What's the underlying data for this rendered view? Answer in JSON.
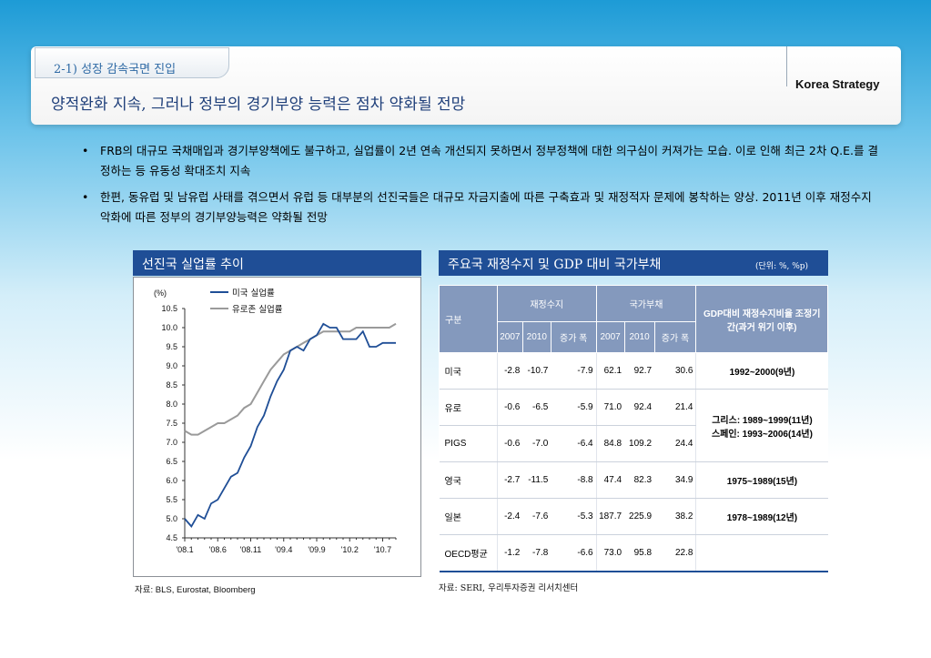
{
  "header": {
    "section_tab": "2-1) 성장 감속국면 진입",
    "title": "양적완화 지속, 그러나 정부의 경기부양 능력은 점차 약화될 전망",
    "brand": "Korea Strategy"
  },
  "bullets": [
    "FRB의 대규모 국채매입과 경기부양책에도 불구하고, 실업률이 2년 연속 개선되지 못하면서 정부정책에 대한 의구심이 커져가는 모습. 이로 인해 최근 2차 Q.E.를 결정하는 등 유동성 확대조치 지속",
    "한편, 동유럽 및 남유럽 사태를 겪으면서 유럽 등 대부분의 선진국들은 대규모 자금지출에 따른 구축효과 및 재정적자 문제에 봉착하는 양상. 2011년 이후 재정수지 악화에 따른 정부의 경기부양능력은 약화될 전망"
  ],
  "left_panel": {
    "title": "선진국 실업률 추이",
    "source": "자료: BLS, Eurostat, Bloomberg"
  },
  "right_panel": {
    "title": "주요국 재정수지 및 GDP 대비 국가부채",
    "unit": "(단위: %, %p)",
    "source": "자료: SERI, 우리투자증권 리서치센터"
  },
  "chart_data": [
    {
      "type": "line",
      "ylabel": "(%)",
      "ylim": [
        4.5,
        10.5
      ],
      "yticks": [
        "4.5",
        "5.0",
        "5.5",
        "6.0",
        "6.5",
        "7.0",
        "7.5",
        "8.0",
        "8.5",
        "9.0",
        "9.5",
        "10.0",
        "10.5"
      ],
      "xticks": [
        "'08.1",
        "'08.6",
        "'08.11",
        "'09.4",
        "'09.9",
        "'10.2",
        "'10.7"
      ],
      "x": [
        0,
        1,
        2,
        3,
        4,
        5,
        6,
        7,
        8,
        9,
        10,
        11,
        12,
        13,
        14,
        15,
        16,
        17,
        18,
        19,
        20,
        21,
        22,
        23,
        24,
        25,
        26,
        27,
        28,
        29,
        30,
        31,
        32
      ],
      "legend_position": "top-right",
      "series": [
        {
          "name": "미국 실업률",
          "color": "#1f4e96",
          "values": [
            5.0,
            4.8,
            5.1,
            5.0,
            5.4,
            5.5,
            5.8,
            6.1,
            6.2,
            6.6,
            6.9,
            7.4,
            7.7,
            8.2,
            8.6,
            8.9,
            9.4,
            9.5,
            9.4,
            9.7,
            9.8,
            10.1,
            10.0,
            10.0,
            9.7,
            9.7,
            9.7,
            9.9,
            9.5,
            9.5,
            9.6,
            9.6,
            9.6
          ]
        },
        {
          "name": "유로존 실업률",
          "color": "#9a9a9a",
          "values": [
            7.3,
            7.2,
            7.2,
            7.3,
            7.4,
            7.5,
            7.5,
            7.6,
            7.7,
            7.9,
            8.0,
            8.3,
            8.6,
            8.9,
            9.1,
            9.3,
            9.4,
            9.5,
            9.6,
            9.7,
            9.8,
            9.9,
            9.9,
            9.9,
            9.9,
            9.9,
            10.0,
            10.0,
            10.0,
            10.0,
            10.0,
            10.0,
            10.1
          ]
        }
      ]
    },
    {
      "type": "table",
      "headers": {
        "category": "구분",
        "group_fiscal": "재정수지",
        "group_debt": "국가부채",
        "group_adjust": "GDP대비 재정수지비율 조정기간(과거 위기 이후)",
        "sub": [
          "2007",
          "2010",
          "증가 폭",
          "2007",
          "2010",
          "증가 폭"
        ]
      },
      "rows": [
        {
          "name": "미국",
          "fiscal_2007": "-2.8",
          "fiscal_2010": "-10.7",
          "fiscal_change": "-7.9",
          "debt_2007": "62.1",
          "debt_2010": "92.7",
          "debt_change": "30.6"
        },
        {
          "name": "유로",
          "fiscal_2007": "-0.6",
          "fiscal_2010": "-6.5",
          "fiscal_change": "-5.9",
          "debt_2007": "71.0",
          "debt_2010": "92.4",
          "debt_change": "21.4"
        },
        {
          "name": "PIGS",
          "fiscal_2007": "-0.6",
          "fiscal_2010": "-7.0",
          "fiscal_change": "-6.4",
          "debt_2007": "84.8",
          "debt_2010": "109.2",
          "debt_change": "24.4"
        },
        {
          "name": "영국",
          "fiscal_2007": "-2.7",
          "fiscal_2010": "-11.5",
          "fiscal_change": "-8.8",
          "debt_2007": "47.4",
          "debt_2010": "82.3",
          "debt_change": "34.9"
        },
        {
          "name": "일본",
          "fiscal_2007": "-2.4",
          "fiscal_2010": "-7.6",
          "fiscal_change": "-5.3",
          "debt_2007": "187.7",
          "debt_2010": "225.9",
          "debt_change": "38.2"
        },
        {
          "name": "OECD평균",
          "fiscal_2007": "-1.2",
          "fiscal_2010": "-7.8",
          "fiscal_change": "-6.6",
          "debt_2007": "73.0",
          "debt_2010": "95.8",
          "debt_change": "22.8"
        }
      ],
      "periods": {
        "us": "1992~2000(9년)",
        "euro_pigs_1": "그리스: 1989~1999(11년)",
        "euro_pigs_2": "스페인: 1993~2006(14년)",
        "uk": "1975~1989(15년)",
        "japan": "1978~1989(12년)"
      }
    }
  ]
}
